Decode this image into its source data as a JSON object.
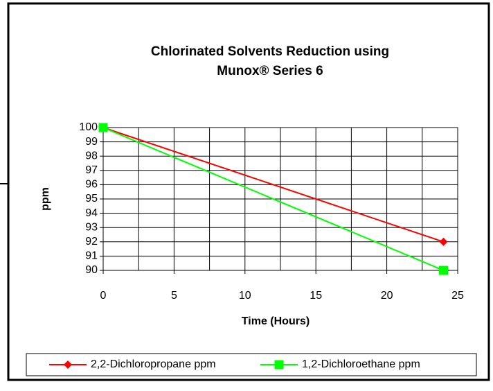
{
  "chart_data": {
    "type": "line",
    "title": [
      "Chlorinated Solvents Reduction using",
      "Munox® Series 6"
    ],
    "x_label": "Time (Hours)",
    "y_label": "ppm",
    "x": [
      0,
      24
    ],
    "series": [
      {
        "name": "2,2-Dichloropropane ppm",
        "color": "#ff0000",
        "marker": "diamond",
        "values": [
          100,
          92
        ]
      },
      {
        "name": "1,2-Dichloroethane ppm",
        "color": "#00ff00",
        "marker": "square",
        "values": [
          100,
          90
        ]
      }
    ],
    "xlim": [
      0,
      25
    ],
    "xticks": [
      0,
      5,
      10,
      15,
      20,
      25
    ],
    "xgrid_step": 2.5,
    "ylim": [
      90,
      100
    ],
    "yticks": [
      90,
      91,
      92,
      93,
      94,
      95,
      96,
      97,
      98,
      99,
      100
    ],
    "grid": true,
    "legend": "bottom"
  }
}
